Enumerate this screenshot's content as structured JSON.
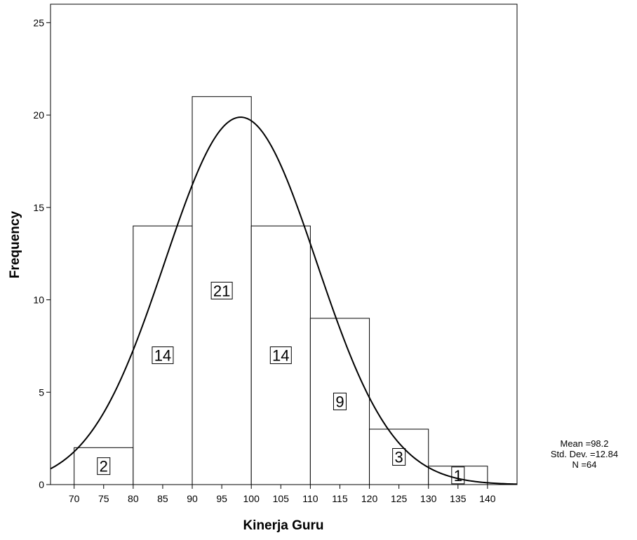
{
  "chart_data": {
    "type": "bar",
    "xlabel": "Kinerja Guru",
    "ylabel": "Frequency",
    "xlim": [
      66,
      145
    ],
    "ylim": [
      0,
      26
    ],
    "x_ticks": [
      70,
      75,
      80,
      85,
      90,
      95,
      100,
      105,
      110,
      115,
      120,
      125,
      130,
      135,
      140
    ],
    "y_ticks": [
      0,
      5,
      10,
      15,
      20,
      25
    ],
    "bins": [
      {
        "from": 70,
        "to": 80,
        "value": 2
      },
      {
        "from": 80,
        "to": 90,
        "value": 14
      },
      {
        "from": 90,
        "to": 100,
        "value": 21
      },
      {
        "from": 100,
        "to": 110,
        "value": 14
      },
      {
        "from": 110,
        "to": 120,
        "value": 9
      },
      {
        "from": 120,
        "to": 130,
        "value": 3
      },
      {
        "from": 130,
        "to": 140,
        "value": 1
      }
    ],
    "normal_curve": {
      "mean": 98.2,
      "std_dev": 12.84,
      "n": 64,
      "bin_width": 10
    },
    "grid": false,
    "stats": {
      "mean": "Mean =98.2",
      "std_dev": "Std. Dev. =12.84",
      "n": "N =64"
    }
  }
}
